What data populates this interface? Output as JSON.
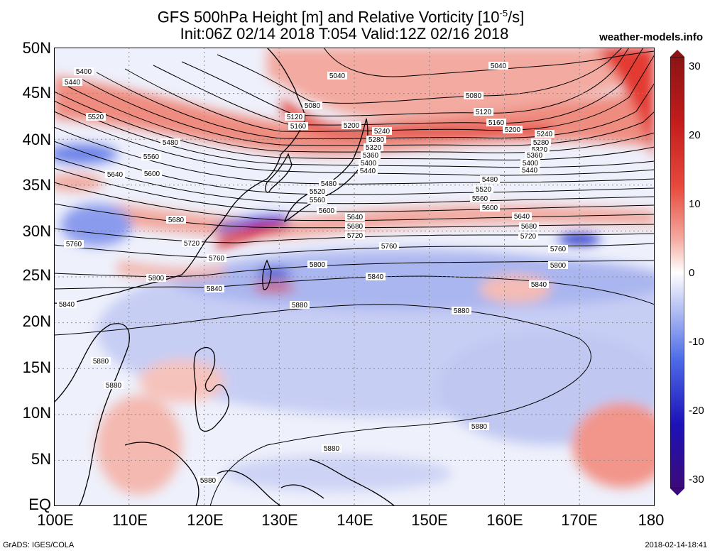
{
  "title_line1_pre": "GFS 500hPa Height [m] and Relative Vorticity [10",
  "title_line1_sup": "-5",
  "title_line1_post": "/s]",
  "title_line2": "Init:06Z 02/14 2018 T:054 Valid:12Z 02/16 2018",
  "site": "weather-models.info",
  "footer_left": "GrADS: IGES/COLA",
  "footer_right": "2018-02-14-18:41",
  "lat_labels": [
    "50N",
    "45N",
    "40N",
    "35N",
    "30N",
    "25N",
    "20N",
    "15N",
    "10N",
    "5N",
    "EQ"
  ],
  "lon_labels": [
    "100E",
    "110E",
    "120E",
    "130E",
    "140E",
    "150E",
    "160E",
    "170E",
    "180"
  ],
  "colorbar": {
    "labels": [
      "30",
      "20",
      "10",
      "0",
      "-10",
      "-20",
      "-30"
    ],
    "colors": [
      "#3c0a78",
      "#1f10b4",
      "#2a4be6",
      "#7d96f0",
      "#c3ccf5",
      "#ffffff",
      "#f7c2bb",
      "#ef7a6c",
      "#e0302a",
      "#b51818",
      "#8c1414"
    ]
  },
  "contours": [
    {
      "value": "5040",
      "labels": [
        "5040",
        "5040"
      ]
    },
    {
      "value": "5080",
      "labels": [
        "5080",
        "5080"
      ]
    },
    {
      "value": "5120",
      "labels": [
        "5120",
        "5120"
      ]
    },
    {
      "value": "5160",
      "labels": [
        "5160",
        "5160"
      ]
    },
    {
      "value": "5200",
      "labels": [
        "5200",
        "5200"
      ]
    },
    {
      "value": "5240",
      "labels": [
        "5240",
        "5240"
      ]
    },
    {
      "value": "5280",
      "labels": [
        "5280",
        "5280"
      ]
    },
    {
      "value": "5320",
      "labels": [
        "5320",
        "5320"
      ]
    },
    {
      "value": "5360",
      "labels": [
        "5360",
        "5360"
      ]
    },
    {
      "value": "5400",
      "labels": [
        "5400",
        "5400",
        "5400"
      ]
    },
    {
      "value": "5440",
      "labels": [
        "5440",
        "5440",
        "5440"
      ]
    },
    {
      "value": "5480",
      "labels": [
        "5480",
        "5480",
        "5480"
      ]
    },
    {
      "value": "5520",
      "labels": [
        "5520",
        "5520",
        "5520"
      ]
    },
    {
      "value": "5560",
      "labels": [
        "5560",
        "5560",
        "5560"
      ]
    },
    {
      "value": "5600",
      "labels": [
        "5600",
        "5600",
        "5600"
      ]
    },
    {
      "value": "5640",
      "labels": [
        "5640",
        "5640",
        "5640"
      ]
    },
    {
      "value": "5680",
      "labels": [
        "5680",
        "5680",
        "5680"
      ]
    },
    {
      "value": "5720",
      "labels": [
        "5720",
        "5720",
        "5720"
      ]
    },
    {
      "value": "5760",
      "labels": [
        "5760",
        "5760",
        "5760",
        "5760"
      ]
    },
    {
      "value": "5800",
      "labels": [
        "5800",
        "5800",
        "5800"
      ]
    },
    {
      "value": "5840",
      "labels": [
        "5840",
        "5840",
        "5840",
        "5840"
      ]
    },
    {
      "value": "5880",
      "labels": [
        "5880",
        "5880",
        "5880",
        "5880",
        "5880",
        "5880",
        "5880",
        "5880"
      ]
    }
  ]
}
